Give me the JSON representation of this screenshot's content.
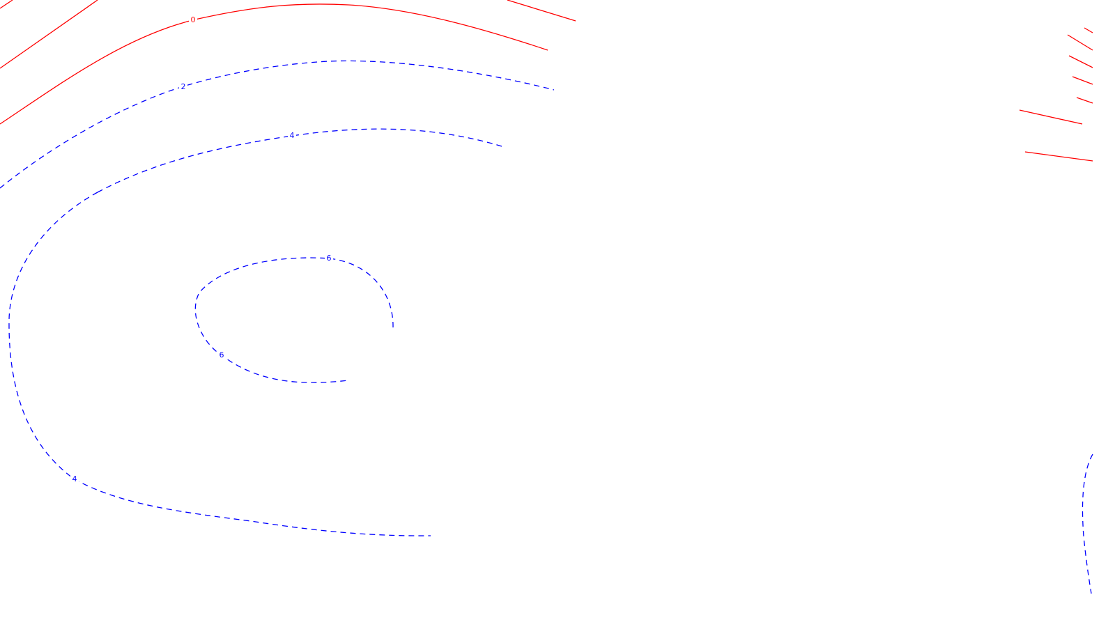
{
  "colors": {
    "background": "#ffffff",
    "positive": "#0000ff",
    "zero": "#ff0000"
  },
  "contour_labels": {
    "zero_top": "0",
    "level_2": "2",
    "level_4_upper": "4",
    "level_4_lower": "4",
    "level_6_top": "6",
    "level_6_left": "6"
  }
}
